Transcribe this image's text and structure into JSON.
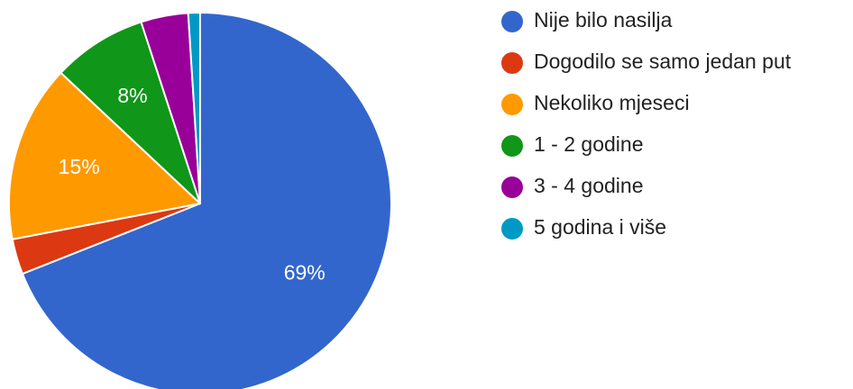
{
  "chart_data": {
    "type": "pie",
    "title": "",
    "start_angle_deg": -90,
    "direction": "clockwise",
    "legend_position": "right",
    "slices": [
      {
        "label": "Nije bilo nasilja",
        "value": 69.0,
        "display": "69%",
        "color": "#3366cc"
      },
      {
        "label": "Dogodilo se samo jedan put",
        "value": 3.0,
        "display": "",
        "color": "#dc3912"
      },
      {
        "label": "Nekoliko mjeseci",
        "value": 15.0,
        "display": "15%",
        "color": "#ff9900"
      },
      {
        "label": "1 - 2 godine",
        "value": 8.0,
        "display": "8%",
        "color": "#109618"
      },
      {
        "label": "3 - 4 godine",
        "value": 4.0,
        "display": "",
        "color": "#990099"
      },
      {
        "label": "5 godina i više",
        "value": 1.0,
        "display": "",
        "color": "#0099c6"
      }
    ]
  }
}
